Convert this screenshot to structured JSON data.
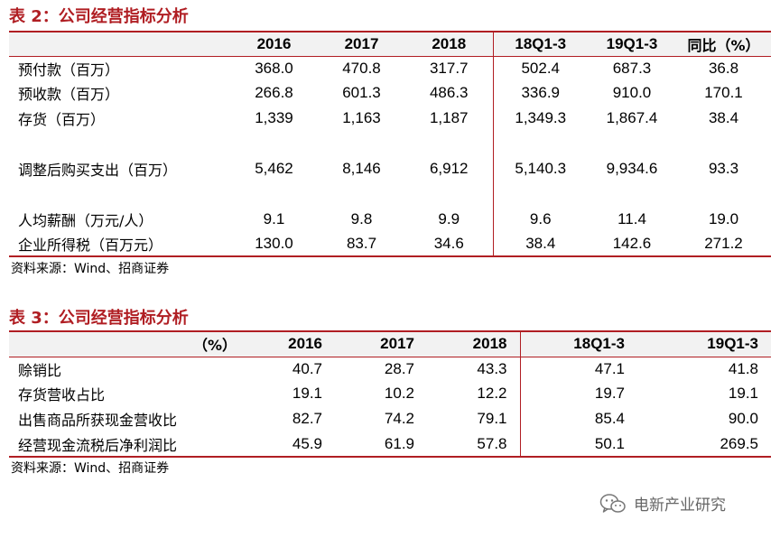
{
  "table2": {
    "title": "表 2：公司经营指标分析",
    "header_label": "",
    "columns": [
      "2016",
      "2017",
      "2018",
      "18Q1-3",
      "19Q1-3",
      "同比（%）"
    ],
    "rows": [
      {
        "label": "预付款（百万）",
        "values": [
          "368.0",
          "470.8",
          "317.7",
          "502.4",
          "687.3",
          "36.8"
        ]
      },
      {
        "label": "预收款（百万）",
        "values": [
          "266.8",
          "601.3",
          "486.3",
          "336.9",
          "910.0",
          "170.1"
        ]
      },
      {
        "label": "存货（百万）",
        "values": [
          "1,339",
          "1,163",
          "1,187",
          "1,349.3",
          "1,867.4",
          "38.4"
        ]
      },
      {
        "label": "调整后购买支出（百万）",
        "values": [
          "5,462",
          "8,146",
          "6,912",
          "5,140.3",
          "9,934.6",
          "93.3"
        ]
      },
      {
        "label": "人均薪酬（万元/人）",
        "values": [
          "9.1",
          "9.8",
          "9.9",
          "9.6",
          "11.4",
          "19.0"
        ]
      },
      {
        "label": "企业所得税（百万元）",
        "values": [
          "130.0",
          "83.7",
          "34.6",
          "38.4",
          "142.6",
          "271.2"
        ]
      }
    ],
    "source": "资料来源：Wind、招商证券"
  },
  "table3": {
    "title": "表 3：公司经营指标分析",
    "header_label": "（%）",
    "columns": [
      "2016",
      "2017",
      "2018",
      "18Q1-3",
      "19Q1-3"
    ],
    "rows": [
      {
        "label": "赊销比",
        "values": [
          "40.7",
          "28.7",
          "43.3",
          "47.1",
          "41.8"
        ]
      },
      {
        "label": "存货营收占比",
        "values": [
          "19.1",
          "10.2",
          "12.2",
          "19.7",
          "19.1"
        ]
      },
      {
        "label": "出售商品所获现金营收比",
        "values": [
          "82.7",
          "74.2",
          "79.1",
          "85.4",
          "90.0"
        ]
      },
      {
        "label": "经营现金流税后净利润比",
        "values": [
          "45.9",
          "61.9",
          "57.8",
          "50.1",
          "269.5"
        ]
      }
    ],
    "source": "资料来源：Wind、招商证券"
  },
  "watermark": {
    "text": "电新产业研究",
    "icon": "wechat-icon"
  },
  "colors": {
    "accent": "#b01e23",
    "header_bg": "#f2f2f2"
  }
}
